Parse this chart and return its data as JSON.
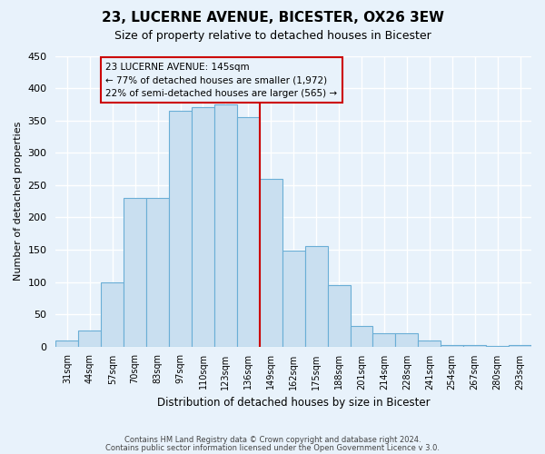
{
  "title": "23, LUCERNE AVENUE, BICESTER, OX26 3EW",
  "subtitle": "Size of property relative to detached houses in Bicester",
  "xlabel": "Distribution of detached houses by size in Bicester",
  "ylabel": "Number of detached properties",
  "bar_labels": [
    "31sqm",
    "44sqm",
    "57sqm",
    "70sqm",
    "83sqm",
    "97sqm",
    "110sqm",
    "123sqm",
    "136sqm",
    "149sqm",
    "162sqm",
    "175sqm",
    "188sqm",
    "201sqm",
    "214sqm",
    "228sqm",
    "241sqm",
    "254sqm",
    "267sqm",
    "280sqm",
    "293sqm"
  ],
  "bar_values": [
    10,
    25,
    100,
    230,
    230,
    365,
    370,
    375,
    355,
    260,
    148,
    155,
    95,
    32,
    20,
    20,
    10,
    3,
    3,
    1,
    2
  ],
  "bar_color": "#c9dff0",
  "bar_edge_color": "#6aaed6",
  "vline_x": 9,
  "vline_color": "#cc0000",
  "annotation_title": "23 LUCERNE AVENUE: 145sqm",
  "annotation_line2": "← 77% of detached houses are smaller (1,972)",
  "annotation_line3": "22% of semi-detached houses are larger (565) →",
  "annotation_box_color": "#cc0000",
  "ylim": [
    0,
    450
  ],
  "yticks": [
    0,
    50,
    100,
    150,
    200,
    250,
    300,
    350,
    400,
    450
  ],
  "footer_line1": "Contains HM Land Registry data © Crown copyright and database right 2024.",
  "footer_line2": "Contains public sector information licensed under the Open Government Licence v 3.0.",
  "bg_color": "#e8f2fb",
  "grid_color": "#ffffff"
}
